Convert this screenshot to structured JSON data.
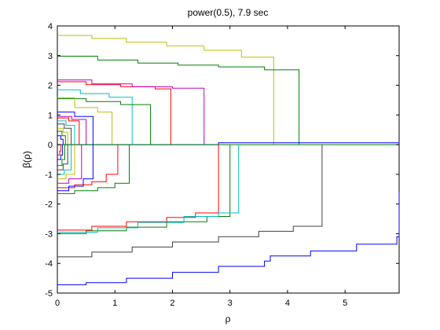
{
  "chart_data": {
    "type": "line",
    "title": "power(0.5), 7.9 sec",
    "xlabel": "ρ",
    "ylabel": "β(ρ)",
    "xlim": [
      0,
      5.94
    ],
    "ylim": [
      -5,
      4
    ],
    "x_ticks": [
      0,
      1,
      2,
      3,
      4,
      5
    ],
    "y_ticks": [
      -5,
      -4,
      -3,
      -2,
      -1,
      0,
      1,
      2,
      3,
      4
    ],
    "grid": false,
    "legend": "none",
    "series": [
      {
        "color": "#bfbf00",
        "points": [
          [
            0,
            3.68
          ],
          [
            0.6,
            3.58
          ],
          [
            1.2,
            3.45
          ],
          [
            1.9,
            3.33
          ],
          [
            2.55,
            3.18
          ],
          [
            3.2,
            2.95
          ],
          [
            3.76,
            2.78
          ],
          [
            3.76,
            0
          ]
        ]
      },
      {
        "color": "#008000",
        "points": [
          [
            0,
            2.98
          ],
          [
            0.7,
            2.85
          ],
          [
            1.4,
            2.75
          ],
          [
            2.1,
            2.68
          ],
          [
            2.8,
            2.62
          ],
          [
            3.6,
            2.52
          ],
          [
            4.2,
            2.45
          ],
          [
            4.2,
            0
          ]
        ]
      },
      {
        "color": "#ff0000",
        "points": [
          [
            0,
            2.12
          ],
          [
            0.5,
            2.02
          ],
          [
            1.1,
            1.95
          ],
          [
            1.7,
            1.88
          ],
          [
            1.97,
            1.82
          ],
          [
            1.97,
            0
          ]
        ]
      },
      {
        "color": "#bf00bf",
        "points": [
          [
            0,
            2.18
          ],
          [
            0.6,
            2.05
          ],
          [
            1.3,
            1.95
          ],
          [
            2.0,
            1.9
          ],
          [
            2.55,
            1.85
          ],
          [
            2.55,
            0
          ]
        ]
      },
      {
        "color": "#00bfbf",
        "points": [
          [
            0,
            1.85
          ],
          [
            0.4,
            1.72
          ],
          [
            0.9,
            1.6
          ],
          [
            1.3,
            1.55
          ],
          [
            1.3,
            0
          ]
        ]
      },
      {
        "color": "#008000",
        "points": [
          [
            0,
            1.55
          ],
          [
            0.5,
            1.45
          ],
          [
            1.1,
            1.35
          ],
          [
            1.62,
            1.28
          ],
          [
            1.62,
            0
          ]
        ]
      },
      {
        "color": "#bfbf00",
        "points": [
          [
            0,
            1.58
          ],
          [
            0.3,
            1.25
          ],
          [
            0.7,
            1.1
          ],
          [
            0.95,
            1.05
          ],
          [
            0.95,
            0
          ]
        ]
      },
      {
        "color": "#0000ff",
        "points": [
          [
            0,
            1.1
          ],
          [
            0.3,
            0.95
          ],
          [
            0.62,
            0.88
          ],
          [
            0.62,
            0
          ]
        ]
      },
      {
        "color": "#bf00bf",
        "points": [
          [
            0,
            0.95
          ],
          [
            0.25,
            0.85
          ],
          [
            0.5,
            0.78
          ],
          [
            0.5,
            0
          ]
        ]
      },
      {
        "color": "#ff0000",
        "points": [
          [
            0,
            0.9
          ],
          [
            0.2,
            0.8
          ],
          [
            0.38,
            0.7
          ],
          [
            0.38,
            0
          ]
        ]
      },
      {
        "color": "#00bfbf",
        "points": [
          [
            0,
            0.8
          ],
          [
            0.15,
            0.65
          ],
          [
            0.3,
            0.58
          ],
          [
            0.3,
            0
          ]
        ]
      },
      {
        "color": "#404040",
        "points": [
          [
            0,
            0.7
          ],
          [
            0.12,
            0.55
          ],
          [
            0.24,
            0.45
          ],
          [
            0.24,
            0
          ]
        ]
      },
      {
        "color": "#bfbf00",
        "points": [
          [
            0,
            0.55
          ],
          [
            0.1,
            0.42
          ],
          [
            0.18,
            0.35
          ],
          [
            0.18,
            0
          ]
        ]
      },
      {
        "color": "#008000",
        "points": [
          [
            0,
            0.45
          ],
          [
            0.08,
            0.3
          ],
          [
            0.14,
            0.22
          ],
          [
            0.14,
            0
          ]
        ]
      },
      {
        "color": "#0000ff",
        "points": [
          [
            0,
            0.3
          ],
          [
            0.06,
            0.18
          ],
          [
            0.1,
            0.12
          ],
          [
            0.1,
            0
          ]
        ]
      },
      {
        "color": "#0000ff",
        "points": [
          [
            0,
            0
          ],
          [
            2.8,
            0.02
          ],
          [
            2.8,
            0.06
          ],
          [
            5.94,
            0.1
          ]
        ]
      },
      {
        "color": "#008000",
        "points": [
          [
            0,
            0
          ],
          [
            5.94,
            0
          ]
        ]
      },
      {
        "color": "#0000ff",
        "points": [
          [
            0,
            -4.72
          ],
          [
            0.5,
            -4.65
          ],
          [
            1.2,
            -4.5
          ],
          [
            2.0,
            -4.3
          ],
          [
            2.8,
            -4.1
          ],
          [
            3.6,
            -3.92
          ],
          [
            3.7,
            -3.75
          ],
          [
            4.4,
            -3.58
          ],
          [
            5.2,
            -3.35
          ],
          [
            5.9,
            -3.1
          ],
          [
            5.94,
            -3.0
          ],
          [
            5.94,
            -1.6
          ]
        ]
      },
      {
        "color": "#404040",
        "points": [
          [
            0,
            -3.78
          ],
          [
            0.6,
            -3.62
          ],
          [
            1.3,
            -3.45
          ],
          [
            2.0,
            -3.28
          ],
          [
            2.8,
            -3.1
          ],
          [
            3.5,
            -2.92
          ],
          [
            4.1,
            -2.75
          ],
          [
            4.6,
            -2.6
          ],
          [
            4.6,
            0
          ]
        ]
      },
      {
        "color": "#008000",
        "points": [
          [
            0,
            -3.0
          ],
          [
            0.5,
            -2.9
          ],
          [
            1.2,
            -2.78
          ],
          [
            1.9,
            -2.6
          ],
          [
            2.6,
            -2.42
          ],
          [
            3.0,
            -2.3
          ],
          [
            3.0,
            0
          ]
        ]
      },
      {
        "color": "#ff0000",
        "points": [
          [
            0,
            -2.88
          ],
          [
            0.6,
            -2.75
          ],
          [
            1.2,
            -2.6
          ],
          [
            1.9,
            -2.45
          ],
          [
            2.4,
            -2.3
          ],
          [
            2.8,
            -2.15
          ],
          [
            2.8,
            0
          ]
        ]
      },
      {
        "color": "#00bfbf",
        "points": [
          [
            0,
            -2.95
          ],
          [
            0.7,
            -2.8
          ],
          [
            1.4,
            -2.62
          ],
          [
            2.2,
            -2.42
          ],
          [
            2.8,
            -2.3
          ],
          [
            3.15,
            -2.15
          ],
          [
            3.15,
            0
          ]
        ]
      },
      {
        "color": "#008000",
        "points": [
          [
            0,
            -1.65
          ],
          [
            0.3,
            -1.55
          ],
          [
            0.7,
            -1.45
          ],
          [
            1.0,
            -1.3
          ],
          [
            1.25,
            -1.15
          ],
          [
            1.25,
            0
          ]
        ]
      },
      {
        "color": "#ff0000",
        "points": [
          [
            0,
            -1.45
          ],
          [
            0.3,
            -1.35
          ],
          [
            0.6,
            -1.25
          ],
          [
            0.85,
            -1.0
          ],
          [
            1.05,
            -0.95
          ],
          [
            1.05,
            0
          ]
        ]
      },
      {
        "color": "#0000ff",
        "points": [
          [
            0,
            -1.55
          ],
          [
            0.2,
            -1.4
          ],
          [
            0.45,
            -1.15
          ],
          [
            0.62,
            -0.95
          ],
          [
            0.62,
            0
          ]
        ]
      },
      {
        "color": "#bf00bf",
        "points": [
          [
            0,
            -1.3
          ],
          [
            0.2,
            -1.15
          ],
          [
            0.42,
            -0.95
          ],
          [
            0.42,
            0
          ]
        ]
      },
      {
        "color": "#bfbf00",
        "points": [
          [
            0,
            -1.15
          ],
          [
            0.15,
            -1.0
          ],
          [
            0.3,
            -0.85
          ],
          [
            0.3,
            0
          ]
        ]
      },
      {
        "color": "#00bfbf",
        "points": [
          [
            0,
            -1.0
          ],
          [
            0.12,
            -0.85
          ],
          [
            0.24,
            -0.7
          ],
          [
            0.24,
            0
          ]
        ]
      },
      {
        "color": "#404040",
        "points": [
          [
            0,
            -0.85
          ],
          [
            0.1,
            -0.65
          ],
          [
            0.18,
            -0.5
          ],
          [
            0.18,
            0
          ]
        ]
      },
      {
        "color": "#008000",
        "points": [
          [
            0,
            -0.7
          ],
          [
            0.08,
            -0.5
          ],
          [
            0.13,
            -0.38
          ],
          [
            0.13,
            0
          ]
        ]
      },
      {
        "color": "#0000ff",
        "points": [
          [
            0,
            -0.5
          ],
          [
            0.06,
            -0.35
          ],
          [
            0.09,
            -0.25
          ],
          [
            0.09,
            0
          ]
        ]
      },
      {
        "color": "#ff0000",
        "points": [
          [
            0,
            -0.35
          ],
          [
            0.04,
            -0.22
          ],
          [
            0.06,
            -0.15
          ],
          [
            0.06,
            0
          ]
        ]
      }
    ]
  }
}
